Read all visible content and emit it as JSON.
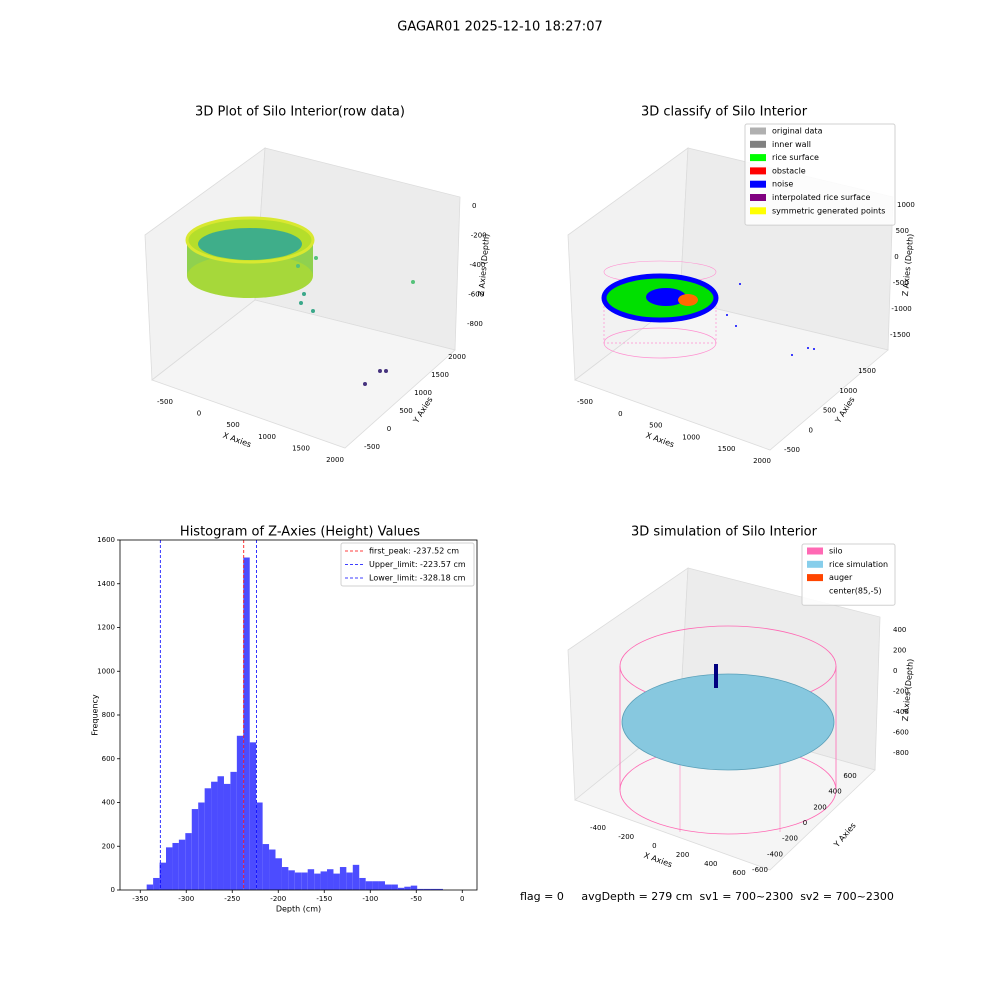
{
  "title": "GAGAR01 2025-12-10 18:27:07",
  "footer": "flag = 0     avgDepth = 279 cm  sv1 = 700~2300  sv2 = 700~2300",
  "chart_data": [
    {
      "type": "scatter3d",
      "title": "3D Plot of Silo Interior(row data)",
      "xlabel": "X Axies",
      "ylabel": "Y Axies",
      "zlabel": "Z Axies (Depth)",
      "xticks": [
        -500,
        0,
        500,
        1000,
        1500,
        2000
      ],
      "yticks": [
        -500,
        0,
        500,
        1000,
        1500,
        2000
      ],
      "zticks": [
        0,
        -200,
        -400,
        -600,
        -800
      ]
    },
    {
      "type": "scatter3d",
      "title": "3D classify of Silo Interior",
      "xlabel": "X Axies",
      "ylabel": "Y Axies",
      "zlabel": "Z Axies (Depth)",
      "xticks": [
        -500,
        0,
        500,
        1000,
        1500,
        2000
      ],
      "yticks": [
        -500,
        0,
        500,
        1000,
        1500
      ],
      "zticks": [
        1000,
        500,
        0,
        -500,
        -1000,
        -1500
      ],
      "legend": {
        "labels": [
          "original data",
          "inner wall",
          "rice surface",
          "obstacle",
          "noise",
          "interpolated rice surface",
          "symmetric generated points"
        ],
        "colors": [
          "#b0b0b0",
          "#808080",
          "#00ff00",
          "#ff0000",
          "#0000ff",
          "#800080",
          "#ffff00"
        ]
      }
    },
    {
      "type": "histogram",
      "title": "Histogram of Z-Axies (Height) Values",
      "xlabel": "Depth (cm)",
      "ylabel": "Frequency",
      "color": "#4c4cff",
      "bins": [
        -343,
        -336,
        -329,
        -322,
        -315,
        -308,
        -301,
        -294,
        -287,
        -280,
        -273,
        -266,
        -259,
        -252,
        -245,
        -238,
        -231,
        -224,
        -217,
        -210,
        -203,
        -196,
        -189,
        -182,
        -175,
        -168,
        -161,
        -154,
        -147,
        -140,
        -133,
        -126,
        -119,
        -112,
        -105,
        -98,
        -91,
        -84,
        -77,
        -70,
        -63,
        -56,
        -49,
        -42,
        -35,
        -28,
        -21
      ],
      "counts": [
        25,
        55,
        125,
        195,
        215,
        230,
        260,
        370,
        400,
        465,
        495,
        520,
        485,
        540,
        705,
        1520,
        675,
        400,
        210,
        185,
        145,
        105,
        90,
        80,
        80,
        95,
        75,
        85,
        95,
        75,
        105,
        80,
        115,
        55,
        40,
        40,
        40,
        25,
        25,
        10,
        15,
        20,
        5,
        5,
        5,
        5
      ],
      "xlim": [
        -372,
        16
      ],
      "ylim": [
        0,
        1600
      ],
      "xticks": [
        -350,
        -300,
        -250,
        -200,
        -150,
        -100,
        -50,
        0
      ],
      "yticks": [
        0,
        200,
        400,
        600,
        800,
        1000,
        1200,
        1400,
        1600
      ],
      "vlines": [
        {
          "value": -237.52,
          "label": "first_peak: -237.52 cm",
          "color": "#ff0000"
        },
        {
          "value": -223.57,
          "label": "Upper_limit: -223.57 cm",
          "color": "#0000ff"
        },
        {
          "value": -328.18,
          "label": "Lower_limit: -328.18 cm",
          "color": "#0000ff"
        }
      ]
    },
    {
      "type": "surface3d",
      "title": "3D simulation of Silo Interior",
      "xlabel": "X Axies",
      "ylabel": "Y Axies",
      "zlabel": "Z Axies (Depth)",
      "xticks": [
        -400,
        -200,
        0,
        200,
        400,
        600
      ],
      "yticks": [
        -600,
        -400,
        -200,
        0,
        200,
        400,
        600
      ],
      "zticks": [
        400,
        200,
        0,
        -200,
        -400,
        -600,
        -800
      ],
      "legend": {
        "labels": [
          "silo",
          "rice simulation",
          "auger",
          "center(85,-5)"
        ],
        "colors": [
          "#ff69b4",
          "#87ceeb",
          "#ff4500",
          "#ffffff"
        ]
      }
    }
  ]
}
